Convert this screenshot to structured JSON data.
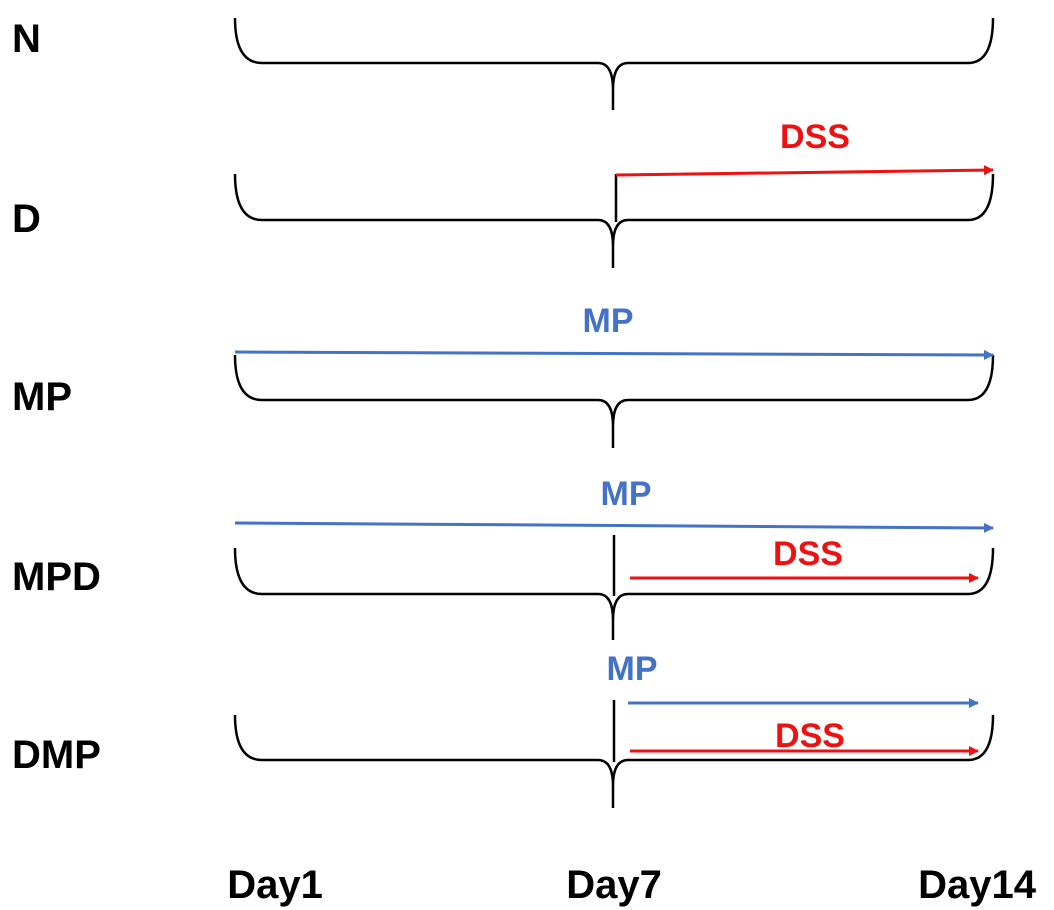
{
  "colors": {
    "line": "#000000",
    "mp": "#4472c4",
    "dss": "#ee1111"
  },
  "axis_labels": [
    "Day1",
    "Day7",
    "Day14"
  ],
  "groups": [
    {
      "label": "N",
      "treatments": []
    },
    {
      "label": "D",
      "treatments": [
        {
          "label": "DSS",
          "color": "dss",
          "from_day": 7,
          "to_day": 14
        }
      ]
    },
    {
      "label": "MP",
      "treatments": [
        {
          "label": "MP",
          "color": "mp",
          "from_day": 1,
          "to_day": 14
        }
      ]
    },
    {
      "label": "MPD",
      "treatments": [
        {
          "label": "MP",
          "color": "mp",
          "from_day": 1,
          "to_day": 14
        },
        {
          "label": "DSS",
          "color": "dss",
          "from_day": 7,
          "to_day": 14
        }
      ]
    },
    {
      "label": "DMP",
      "treatments": [
        {
          "label": "MP",
          "color": "mp",
          "from_day": 7,
          "to_day": 14
        },
        {
          "label": "DSS",
          "color": "dss",
          "from_day": 7,
          "to_day": 14
        }
      ]
    }
  ]
}
